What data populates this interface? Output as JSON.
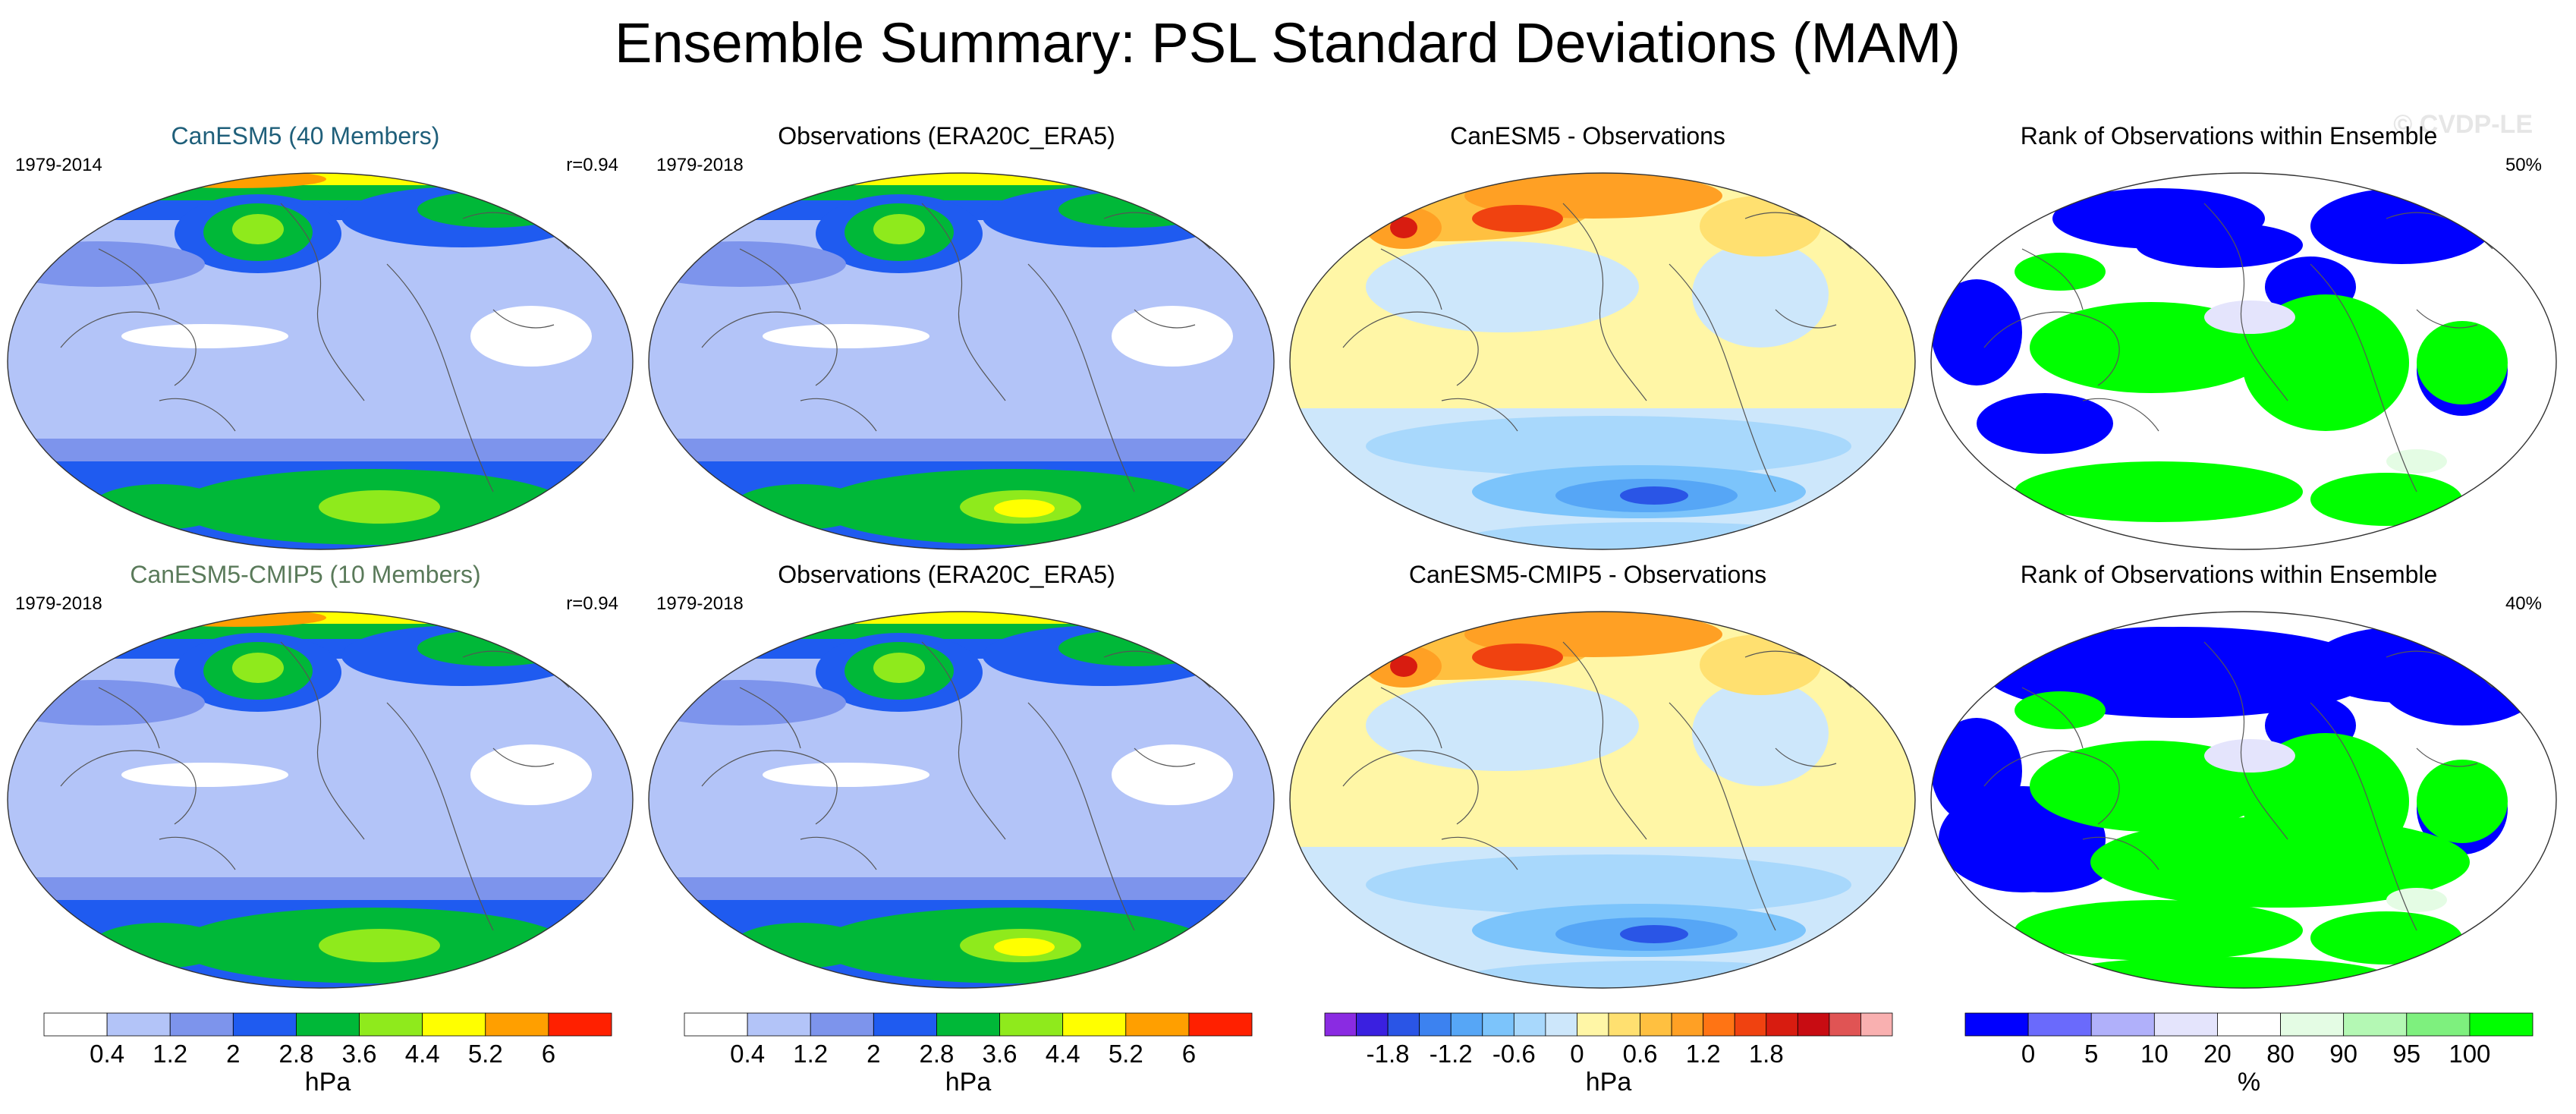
{
  "chart_data": {
    "type": "map",
    "title": "Ensemble Summary: PSL Standard Deviations (MAM)",
    "watermark": "© CVDP-LE",
    "rows": [
      {
        "panels": [
          {
            "title": "CanESM5 (40 Members)",
            "title_color": "#1f5f7a",
            "left_label": "1979-2014",
            "right_label": "r=0.94",
            "kind": "sd"
          },
          {
            "title": "Observations (ERA20C_ERA5)",
            "title_color": "#000000",
            "left_label": "1979-2018",
            "right_label": "",
            "kind": "sd_obs"
          },
          {
            "title": "CanESM5 - Observations",
            "title_color": "#000000",
            "left_label": "",
            "right_label": "",
            "kind": "diff"
          },
          {
            "title": "Rank of Observations within Ensemble",
            "title_color": "#000000",
            "left_label": "",
            "right_label": "50%",
            "kind": "rank"
          }
        ]
      },
      {
        "panels": [
          {
            "title": "CanESM5-CMIP5 (10 Members)",
            "title_color": "#5a7a5a",
            "left_label": "1979-2018",
            "right_label": "r=0.94",
            "kind": "sd"
          },
          {
            "title": "Observations (ERA20C_ERA5)",
            "title_color": "#000000",
            "left_label": "1979-2018",
            "right_label": "",
            "kind": "sd_obs"
          },
          {
            "title": "CanESM5-CMIP5 - Observations",
            "title_color": "#000000",
            "left_label": "",
            "right_label": "",
            "kind": "diff"
          },
          {
            "title": "Rank of Observations within Ensemble",
            "title_color": "#000000",
            "left_label": "",
            "right_label": "40%",
            "kind": "rank"
          }
        ]
      }
    ],
    "colorbars": [
      {
        "name": "sd",
        "unit": "hPa",
        "ticks": [
          "0.4",
          "1.2",
          "2",
          "2.8",
          "3.6",
          "4.4",
          "5.2",
          "6"
        ],
        "colors": [
          "#ffffff",
          "#b3c4f8",
          "#7d94ec",
          "#1f5bf0",
          "#00b838",
          "#8fea1c",
          "#ffff00",
          "#ff9f00",
          "#ff2000"
        ]
      },
      {
        "name": "sd_obs",
        "unit": "hPa",
        "ticks": [
          "0.4",
          "1.2",
          "2",
          "2.8",
          "3.6",
          "4.4",
          "5.2",
          "6"
        ],
        "colors": [
          "#ffffff",
          "#b3c4f8",
          "#7d94ec",
          "#1f5bf0",
          "#00b838",
          "#8fea1c",
          "#ffff00",
          "#ff9f00",
          "#ff2000"
        ]
      },
      {
        "name": "diff",
        "unit": "hPa",
        "ticks": [
          "-1.8",
          "-1.2",
          "-0.6",
          "0",
          "0.6",
          "1.2",
          "1.8"
        ],
        "colors": [
          "#8a2be2",
          "#3a20e0",
          "#2a55e6",
          "#3c82f0",
          "#56a6f6",
          "#7cc4fb",
          "#a8d8fc",
          "#cde7fb",
          "#fff6a6",
          "#ffe070",
          "#ffc040",
          "#ffa024",
          "#ff7414",
          "#f04210",
          "#d81c10",
          "#c80c12",
          "#e05454",
          "#f9b0b0"
        ]
      },
      {
        "name": "rank",
        "unit": "%",
        "ticks": [
          "0",
          "5",
          "10",
          "20",
          "80",
          "90",
          "95",
          "100"
        ],
        "colors": [
          "#0000ff",
          "#6a6afc",
          "#b0b0fa",
          "#e4e4fc",
          "#ffffff",
          "#e4fce4",
          "#b4f8b4",
          "#7ef07e",
          "#00ff00"
        ]
      }
    ]
  }
}
